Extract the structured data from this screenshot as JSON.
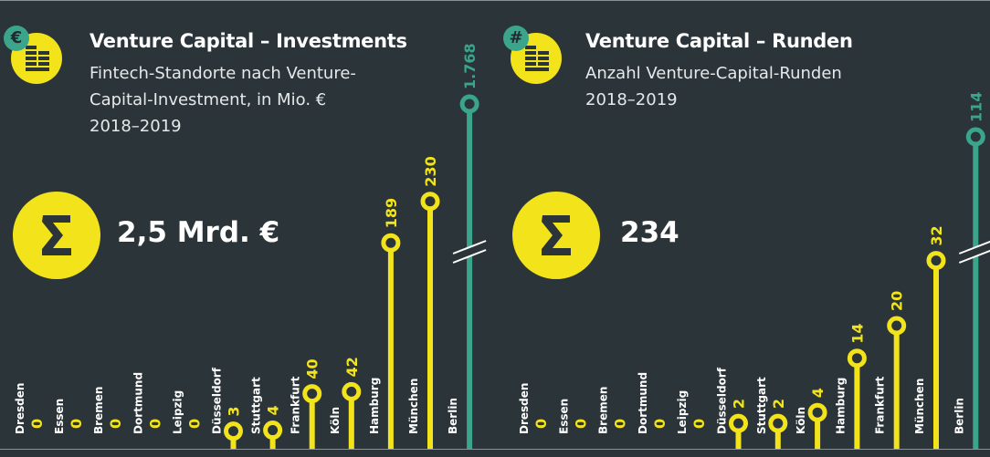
{
  "colors": {
    "background": "#2b3539",
    "yellow": "#f2e31b",
    "green": "#3aa58a",
    "text": "#ffffff"
  },
  "left": {
    "badge_icon": "euro-coin-stack-icon",
    "badge_symbol": "€",
    "title": "Venture Capital – Investments",
    "subtitle_lines": [
      "Fintech-Standorte nach Venture-",
      "Capital-Investment, in Mio. €",
      "2018–2019"
    ],
    "sum_icon": "sigma-icon",
    "total": "2,5 Mrd. €"
  },
  "right": {
    "badge_icon": "hash-coin-stack-icon",
    "badge_symbol": "#",
    "title": "Venture Capital – Runden",
    "subtitle_lines": [
      "Anzahl Venture-Capital-Runden",
      "2018–2019"
    ],
    "sum_icon": "sigma-icon",
    "total": "234"
  },
  "chart_data": [
    {
      "type": "lollipop",
      "title": "Venture Capital – Investments",
      "unit": "Mio. €",
      "categories": [
        "Dresden",
        "Essen",
        "Bremen",
        "Dortmund",
        "Leipzig",
        "Düsseldorf",
        "Stuttgart",
        "Frankfurt",
        "Köln",
        "Hamburg",
        "München",
        "Berlin"
      ],
      "values": [
        0,
        0,
        0,
        0,
        0,
        3,
        4,
        40,
        42,
        189,
        230,
        1768
      ],
      "value_labels": [
        "0",
        "0",
        "0",
        "0",
        "0",
        "3",
        "4",
        "40",
        "42",
        "189",
        "230",
        "1.768"
      ],
      "axis_break_on": "Berlin",
      "highlight": "Berlin"
    },
    {
      "type": "lollipop",
      "title": "Venture Capital – Runden",
      "unit": "Anzahl",
      "categories": [
        "Dresden",
        "Essen",
        "Bremen",
        "Dortmund",
        "Leipzig",
        "Düsseldorf",
        "Stuttgart",
        "Köln",
        "Hamburg",
        "Frankfurt",
        "München",
        "Berlin"
      ],
      "values": [
        0,
        0,
        0,
        0,
        0,
        2,
        2,
        4,
        14,
        20,
        32,
        114
      ],
      "value_labels": [
        "0",
        "0",
        "0",
        "0",
        "0",
        "2",
        "2",
        "4",
        "14",
        "20",
        "32",
        "114"
      ],
      "axis_break_on": "Berlin",
      "highlight": "Berlin"
    }
  ]
}
